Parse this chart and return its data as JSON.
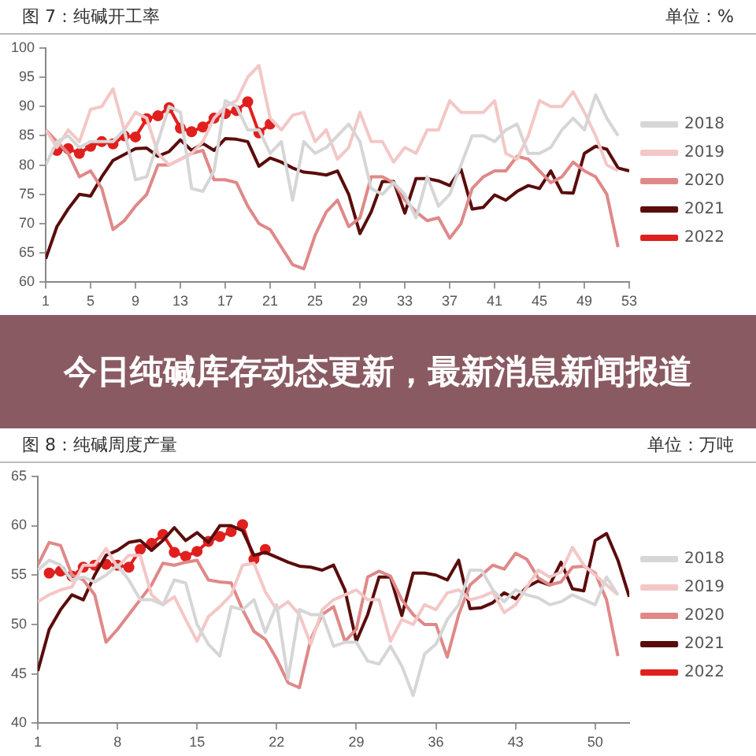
{
  "chart_data": [
    {
      "type": "line",
      "title": "图 7：纯碱开工率",
      "annotations": [
        "单位：%",
        "今日纯碱库存动态更新，最新消息新闻报道"
      ],
      "x": [
        1,
        2,
        3,
        4,
        5,
        6,
        7,
        8,
        9,
        10,
        11,
        12,
        13,
        14,
        15,
        16,
        17,
        18,
        19,
        20,
        21,
        22,
        23,
        24,
        25,
        26,
        27,
        28,
        29,
        30,
        31,
        32,
        33,
        34,
        35,
        36,
        37,
        38,
        39,
        40,
        41,
        42,
        43,
        44,
        45,
        46,
        47,
        48,
        49,
        50,
        51,
        52,
        53
      ],
      "xlim": [
        1,
        53
      ],
      "xticks": [
        1,
        5,
        9,
        13,
        17,
        21,
        25,
        29,
        33,
        37,
        41,
        45,
        49,
        53
      ],
      "ylim": [
        60,
        100
      ],
      "yticks": [
        60,
        65,
        70,
        75,
        80,
        85,
        90,
        95,
        100
      ],
      "grid": false,
      "legend": "right",
      "line_style": "solid",
      "series": [
        {
          "name": "2018",
          "color": "#d6d6d6",
          "marker": "none",
          "values": [
            80,
            84,
            85,
            83,
            84,
            84,
            84,
            86,
            77.5,
            78,
            84,
            90,
            89,
            76,
            75.5,
            79,
            91,
            90,
            86,
            86,
            82,
            84,
            74,
            84,
            82,
            83,
            85,
            87,
            84,
            76,
            75,
            77,
            75,
            71,
            78,
            73,
            75,
            80,
            85,
            85,
            84,
            86,
            87,
            82,
            82,
            83,
            86,
            88,
            86,
            92,
            88,
            85,
            null
          ]
        },
        {
          "name": "2019",
          "color": "#f4c7c7",
          "marker": "none",
          "values": [
            86,
            83,
            86,
            84,
            89.5,
            90,
            93,
            86,
            89,
            88,
            82,
            80,
            81,
            82,
            84,
            88,
            90,
            91,
            95,
            97,
            88,
            86,
            88.5,
            89,
            84,
            86,
            81,
            83,
            89,
            84,
            84,
            80.5,
            83,
            82,
            86,
            86,
            91,
            89,
            89,
            89,
            91,
            82,
            81,
            85,
            91,
            90,
            90,
            92.5,
            89,
            85,
            80,
            79,
            null
          ]
        },
        {
          "name": "2020",
          "color": "#e08888",
          "marker": "none",
          "values": [
            86,
            84,
            82,
            78,
            79,
            76,
            69,
            70.5,
            73,
            75,
            80,
            80,
            81,
            82,
            82.5,
            77.5,
            77.5,
            77,
            73,
            70,
            69,
            66,
            63,
            62.3,
            68,
            72,
            74,
            69.5,
            71,
            78,
            78,
            77,
            74,
            72,
            70.5,
            71,
            67.5,
            70,
            76,
            78,
            79,
            79,
            81.5,
            81,
            79,
            77,
            78,
            80.5,
            79,
            78,
            75,
            66,
            null
          ]
        },
        {
          "name": "2021",
          "color": "#5a0c0c",
          "marker": "none",
          "values": [
            64,
            69.5,
            72.5,
            75,
            74.7,
            78,
            80.8,
            81.8,
            82.8,
            82.9,
            81.5,
            82.3,
            84.3,
            82.5,
            83.7,
            82.5,
            84.5,
            84.4,
            84,
            79.8,
            81.2,
            80.5,
            79.5,
            78.8,
            78.6,
            78.3,
            79,
            75,
            68.3,
            72,
            77.2,
            77.2,
            71.8,
            77.7,
            77.7,
            77.3,
            76.5,
            79.3,
            72.5,
            72.8,
            74.9,
            74,
            75.5,
            76.5,
            76,
            79,
            75.3,
            75.2,
            82,
            83.2,
            82.7,
            79.5,
            79
          ]
        },
        {
          "name": "2022",
          "color": "#e0201e",
          "marker": "circle",
          "values": [
            null,
            82.5,
            82.8,
            82,
            83.2,
            84,
            83.6,
            85,
            84.8,
            87.9,
            88.4,
            89.8,
            86.3,
            85.7,
            86.5,
            88,
            88.8,
            89.3,
            90.8,
            85.5,
            87,
            null,
            null,
            null,
            null,
            null,
            null,
            null,
            null,
            null,
            null,
            null,
            null,
            null,
            null,
            null,
            null,
            null,
            null,
            null,
            null,
            null,
            null,
            null,
            null,
            null,
            null,
            null,
            null,
            null,
            null,
            null,
            null
          ]
        }
      ]
    },
    {
      "type": "line",
      "title": "图 8：纯碱周度产量",
      "annotations": [
        "单位：万吨"
      ],
      "x": [
        1,
        2,
        3,
        4,
        5,
        6,
        7,
        8,
        9,
        10,
        11,
        12,
        13,
        14,
        15,
        16,
        17,
        18,
        19,
        20,
        21,
        22,
        23,
        24,
        25,
        26,
        27,
        28,
        29,
        30,
        31,
        32,
        33,
        34,
        35,
        36,
        37,
        38,
        39,
        40,
        41,
        42,
        43,
        44,
        45,
        46,
        47,
        48,
        49,
        50,
        51,
        52,
        53
      ],
      "xlim": [
        1,
        53
      ],
      "xticks": [
        1,
        8,
        15,
        22,
        29,
        36,
        43,
        50
      ],
      "ylim": [
        40,
        65
      ],
      "yticks": [
        40,
        45,
        50,
        55,
        60,
        65
      ],
      "grid": false,
      "legend": "right",
      "line_style": "solid",
      "series": [
        {
          "name": "2018",
          "color": "#d6d6d6",
          "marker": "none",
          "values": [
            55.5,
            56.5,
            56,
            54.5,
            54.8,
            54.3,
            55,
            56,
            54.5,
            52.5,
            52.5,
            52,
            54.5,
            54.2,
            50,
            48,
            46.8,
            51.8,
            51.5,
            52.5,
            49.2,
            52,
            44.5,
            51.5,
            51,
            51,
            47.8,
            48.2,
            48.2,
            46.3,
            46,
            47.8,
            45.8,
            42.8,
            47,
            48,
            50.5,
            52,
            55.5,
            55.5,
            53.5,
            52.3,
            53.5,
            53,
            52.7,
            52,
            52.3,
            53,
            52.5,
            52,
            54.8,
            53,
            null
          ]
        },
        {
          "name": "2019",
          "color": "#f4c7c7",
          "marker": "none",
          "values": [
            52.3,
            53,
            53.5,
            53.8,
            56,
            56,
            57.7,
            55.8,
            57,
            57,
            53,
            52,
            52.8,
            50.5,
            48.3,
            50.8,
            51.8,
            53,
            56,
            56.2,
            53.3,
            51.5,
            52.3,
            51,
            48,
            51.5,
            52.5,
            53,
            53.5,
            52.5,
            52.5,
            48.3,
            50.5,
            50,
            52,
            51.5,
            53.2,
            53.5,
            52.5,
            52.8,
            53.3,
            51.2,
            52,
            53.8,
            55.5,
            54.8,
            55.3,
            57.8,
            56,
            55,
            54,
            53,
            null
          ]
        },
        {
          "name": "2020",
          "color": "#e08888",
          "marker": "none",
          "values": [
            56,
            58.3,
            58,
            55,
            54.5,
            53,
            48.2,
            49.5,
            51,
            52.5,
            54,
            56.2,
            56,
            56.3,
            56.5,
            54.5,
            54.3,
            54.2,
            51.5,
            49.3,
            48.5,
            46.5,
            44.1,
            43.6,
            48.5,
            51,
            51.8,
            48.3,
            49.5,
            54.8,
            55.4,
            54.9,
            52.5,
            51,
            50,
            50,
            46.7,
            51,
            54,
            55,
            56,
            55.6,
            57.2,
            56.6,
            54.7,
            54,
            54.3,
            55.8,
            55.9,
            55.2,
            52.5,
            46.8,
            null
          ]
        },
        {
          "name": "2021",
          "color": "#5a0c0c",
          "marker": "none",
          "values": [
            45.3,
            49.5,
            51.5,
            53,
            52.5,
            55,
            57,
            57.5,
            58.3,
            58.5,
            57.5,
            58.5,
            59.8,
            58.5,
            59.3,
            58.3,
            60,
            60,
            59.5,
            57,
            57.3,
            56.8,
            56.3,
            55.9,
            55.8,
            55.5,
            56,
            53.5,
            48.3,
            51,
            54.8,
            54.8,
            50.9,
            55.2,
            55.2,
            55,
            54.5,
            56.5,
            51.6,
            51.7,
            52.2,
            53.2,
            52.6,
            53.8,
            54.4,
            54,
            56.3,
            53.6,
            53.4,
            58.5,
            59.2,
            56.5,
            52.8
          ]
        },
        {
          "name": "2022",
          "color": "#e0201e",
          "marker": "circle",
          "values": [
            null,
            55.2,
            55.4,
            54.9,
            55.8,
            56,
            56.1,
            56,
            55.8,
            57.6,
            58.2,
            59.1,
            57.3,
            56.9,
            57.4,
            58.4,
            58.9,
            59.4,
            60.1,
            56.6,
            57.6,
            null,
            null,
            null,
            null,
            null,
            null,
            null,
            null,
            null,
            null,
            null,
            null,
            null,
            null,
            null,
            null,
            null,
            null,
            null,
            null,
            null,
            null,
            null,
            null,
            null,
            null,
            null,
            null,
            null,
            null,
            null,
            null
          ]
        }
      ]
    }
  ]
}
